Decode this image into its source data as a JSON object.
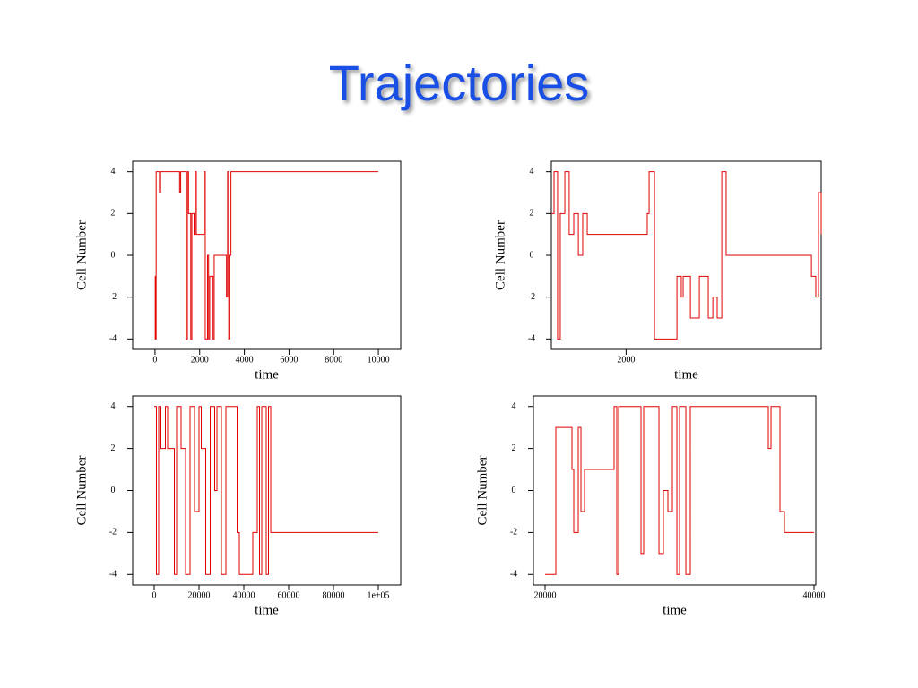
{
  "title": "Trajectories",
  "chart_data": [
    {
      "type": "line",
      "step": "post",
      "xlabel": "time",
      "ylabel": "Cell Number",
      "color": "#e00000",
      "xlim": [
        -1000,
        11000
      ],
      "xticks": [
        0,
        2000,
        4000,
        6000,
        8000,
        10000
      ],
      "ylim": [
        -4.5,
        4.5
      ],
      "yticks": [
        -4,
        -2,
        0,
        2,
        4
      ],
      "x": [
        0,
        10,
        50,
        200,
        250,
        1100,
        1150,
        1400,
        1450,
        1500,
        1600,
        1650,
        1750,
        1800,
        1850,
        2200,
        2250,
        2350,
        2400,
        2450,
        2600,
        2650,
        3200,
        3250,
        3300,
        3350,
        3400,
        10000
      ],
      "values": [
        -1,
        -4,
        4,
        3,
        4,
        3,
        4,
        -4,
        4,
        2,
        -4,
        2,
        1,
        4,
        1,
        4,
        -4,
        0,
        -4,
        -1,
        -4,
        0,
        -2,
        4,
        -4,
        0,
        4,
        4
      ]
    },
    {
      "type": "line",
      "step": "post",
      "xlabel": "time",
      "ylabel": "Cell Number",
      "color": "#e00000",
      "xlim": [
        1640,
        2940
      ],
      "xticks": [
        2000
      ],
      "ylim": [
        -4.5,
        4.5
      ],
      "yticks": [
        -4,
        -2,
        0,
        2,
        4
      ],
      "x": [
        1640,
        1653,
        1670,
        1683,
        1705,
        1726,
        1748,
        1770,
        1791,
        1813,
        2102,
        2111,
        2137,
        2245,
        2266,
        2275,
        2310,
        2353,
        2396,
        2418,
        2439,
        2461,
        2482,
        2893,
        2914,
        2927,
        2940
      ],
      "values": [
        2,
        4,
        -4,
        2,
        4,
        1,
        2,
        0,
        2,
        1,
        2,
        4,
        -4,
        -1,
        -2,
        -1,
        -3,
        -1,
        -3,
        -2,
        -3,
        4,
        0,
        -1,
        -2,
        3,
        1
      ]
    },
    {
      "type": "line",
      "step": "post",
      "xlabel": "time",
      "ylabel": "Cell Number",
      "color": "#e00000",
      "xlim": [
        -9600,
        110000
      ],
      "xticks": [
        0,
        20000,
        40000,
        60000,
        80000,
        {
          "value": 100000,
          "label": "1e+05"
        }
      ],
      "ylim": [
        -4.5,
        4.5
      ],
      "yticks": [
        -4,
        -2,
        0,
        2,
        4
      ],
      "x": [
        0,
        1000,
        2000,
        3000,
        5000,
        6000,
        9000,
        10000,
        12000,
        14000,
        16000,
        18000,
        20000,
        21000,
        23000,
        25000,
        27000,
        28000,
        30000,
        32000,
        37000,
        38000,
        44000,
        46000,
        47000,
        48000,
        50000,
        51000,
        52000,
        100000
      ],
      "values": [
        4,
        -4,
        4,
        2,
        4,
        2,
        -4,
        4,
        2,
        -4,
        4,
        -1,
        4,
        2,
        -4,
        4,
        0,
        4,
        -4,
        4,
        -2,
        -4,
        -2,
        4,
        -4,
        4,
        -4,
        4,
        -2,
        -2
      ]
    },
    {
      "type": "line",
      "step": "post",
      "xlabel": "time",
      "ylabel": "Cell Number",
      "color": "#e00000",
      "xlim": [
        19133,
        40133
      ],
      "xticks": [
        20000,
        40000
      ],
      "ylim": [
        -4.5,
        4.5
      ],
      "yticks": [
        -4,
        -2,
        0,
        2,
        4
      ],
      "x": [
        20000,
        20800,
        22000,
        22133,
        22467,
        22667,
        22933,
        25133,
        25333,
        25467,
        27133,
        27333,
        28467,
        28800,
        29133,
        29467,
        29800,
        30000,
        30467,
        30800,
        36600,
        36800,
        37467,
        37800,
        40000
      ],
      "values": [
        -4,
        3,
        1,
        -2,
        3,
        -1,
        1,
        4,
        -4,
        4,
        -3,
        4,
        -3,
        0,
        -1,
        4,
        -4,
        4,
        -4,
        4,
        2,
        4,
        -1,
        -2,
        -2
      ]
    }
  ]
}
